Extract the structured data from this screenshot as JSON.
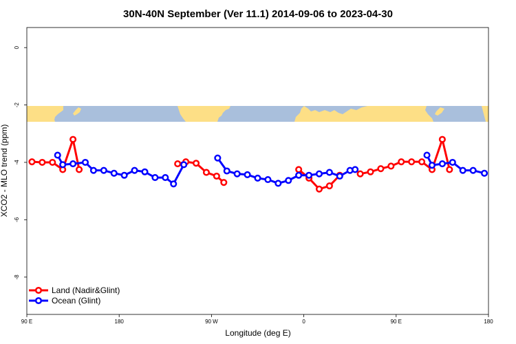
{
  "chart_data": {
    "type": "line",
    "title": "30N-40N September (Ver 11.1)   2014-09-06 to 2023-04-30",
    "xlabel": "Longitude (deg E)",
    "ylabel": "XCO2 - MLO trend (ppm)",
    "xlim": [
      90,
      540
    ],
    "ylim": [
      -9.3,
      0.7
    ],
    "x_ticks": [
      {
        "value": 90,
        "label": "90 E"
      },
      {
        "value": 180,
        "label": "180"
      },
      {
        "value": 270,
        "label": "90 W"
      },
      {
        "value": 360,
        "label": "0"
      },
      {
        "value": 450,
        "label": "90 E"
      },
      {
        "value": 540,
        "label": "180"
      }
    ],
    "y_ticks": [
      0,
      -2,
      -4,
      -6,
      -8
    ],
    "legend_position": "bottom-left",
    "map_band": {
      "y_top": -2.1,
      "y_bottom": -2.65,
      "ocean_color": "#a9bfdc",
      "land_color": "#fddf86"
    },
    "series": [
      {
        "name": "Land (Nadir&Glint)",
        "color": "#ff0000",
        "segments": [
          [
            [
              95,
              -3.98
            ],
            [
              105,
              -4.0
            ],
            [
              115,
              -4.0
            ],
            [
              125,
              -4.25
            ],
            [
              135,
              -3.2
            ],
            [
              141,
              -4.25
            ]
          ],
          [
            [
              237,
              -4.05
            ],
            [
              245,
              -3.98
            ],
            [
              255,
              -4.03
            ],
            [
              265,
              -4.35
            ],
            [
              275,
              -4.48
            ],
            [
              282,
              -4.7
            ]
          ],
          [
            [
              355,
              -4.25
            ],
            [
              365,
              -4.55
            ],
            [
              375,
              -4.93
            ],
            [
              385,
              -4.82
            ],
            [
              395,
              -4.45
            ]
          ],
          [
            [
              415,
              -4.4
            ],
            [
              425,
              -4.33
            ],
            [
              435,
              -4.22
            ],
            [
              445,
              -4.13
            ],
            [
              455,
              -3.98
            ],
            [
              465,
              -3.98
            ],
            [
              475,
              -3.98
            ],
            [
              485,
              -4.25
            ],
            [
              495,
              -3.2
            ],
            [
              502,
              -4.25
            ]
          ]
        ]
      },
      {
        "name": "Ocean (Glint)",
        "color": "#0000ff",
        "segments": [
          [
            [
              120,
              -3.75
            ],
            [
              125,
              -4.08
            ],
            [
              135,
              -4.05
            ],
            [
              147,
              -4.0
            ],
            [
              155,
              -4.28
            ],
            [
              165,
              -4.28
            ],
            [
              175,
              -4.38
            ],
            [
              185,
              -4.45
            ],
            [
              195,
              -4.28
            ],
            [
              205,
              -4.33
            ],
            [
              215,
              -4.53
            ],
            [
              225,
              -4.53
            ],
            [
              233,
              -4.75
            ],
            [
              243,
              -4.08
            ]
          ],
          [
            [
              276,
              -3.85
            ],
            [
              285,
              -4.3
            ],
            [
              295,
              -4.4
            ],
            [
              305,
              -4.43
            ],
            [
              315,
              -4.55
            ],
            [
              325,
              -4.6
            ],
            [
              335,
              -4.73
            ],
            [
              345,
              -4.63
            ],
            [
              355,
              -4.45
            ],
            [
              365,
              -4.45
            ],
            [
              375,
              -4.4
            ],
            [
              385,
              -4.35
            ],
            [
              395,
              -4.48
            ],
            [
              405,
              -4.28
            ],
            [
              410,
              -4.25
            ]
          ],
          [
            [
              480,
              -3.75
            ],
            [
              485,
              -4.1
            ],
            [
              495,
              -4.05
            ],
            [
              505,
              -4.0
            ],
            [
              515,
              -4.28
            ],
            [
              525,
              -4.28
            ],
            [
              536,
              -4.38
            ]
          ]
        ]
      }
    ]
  }
}
